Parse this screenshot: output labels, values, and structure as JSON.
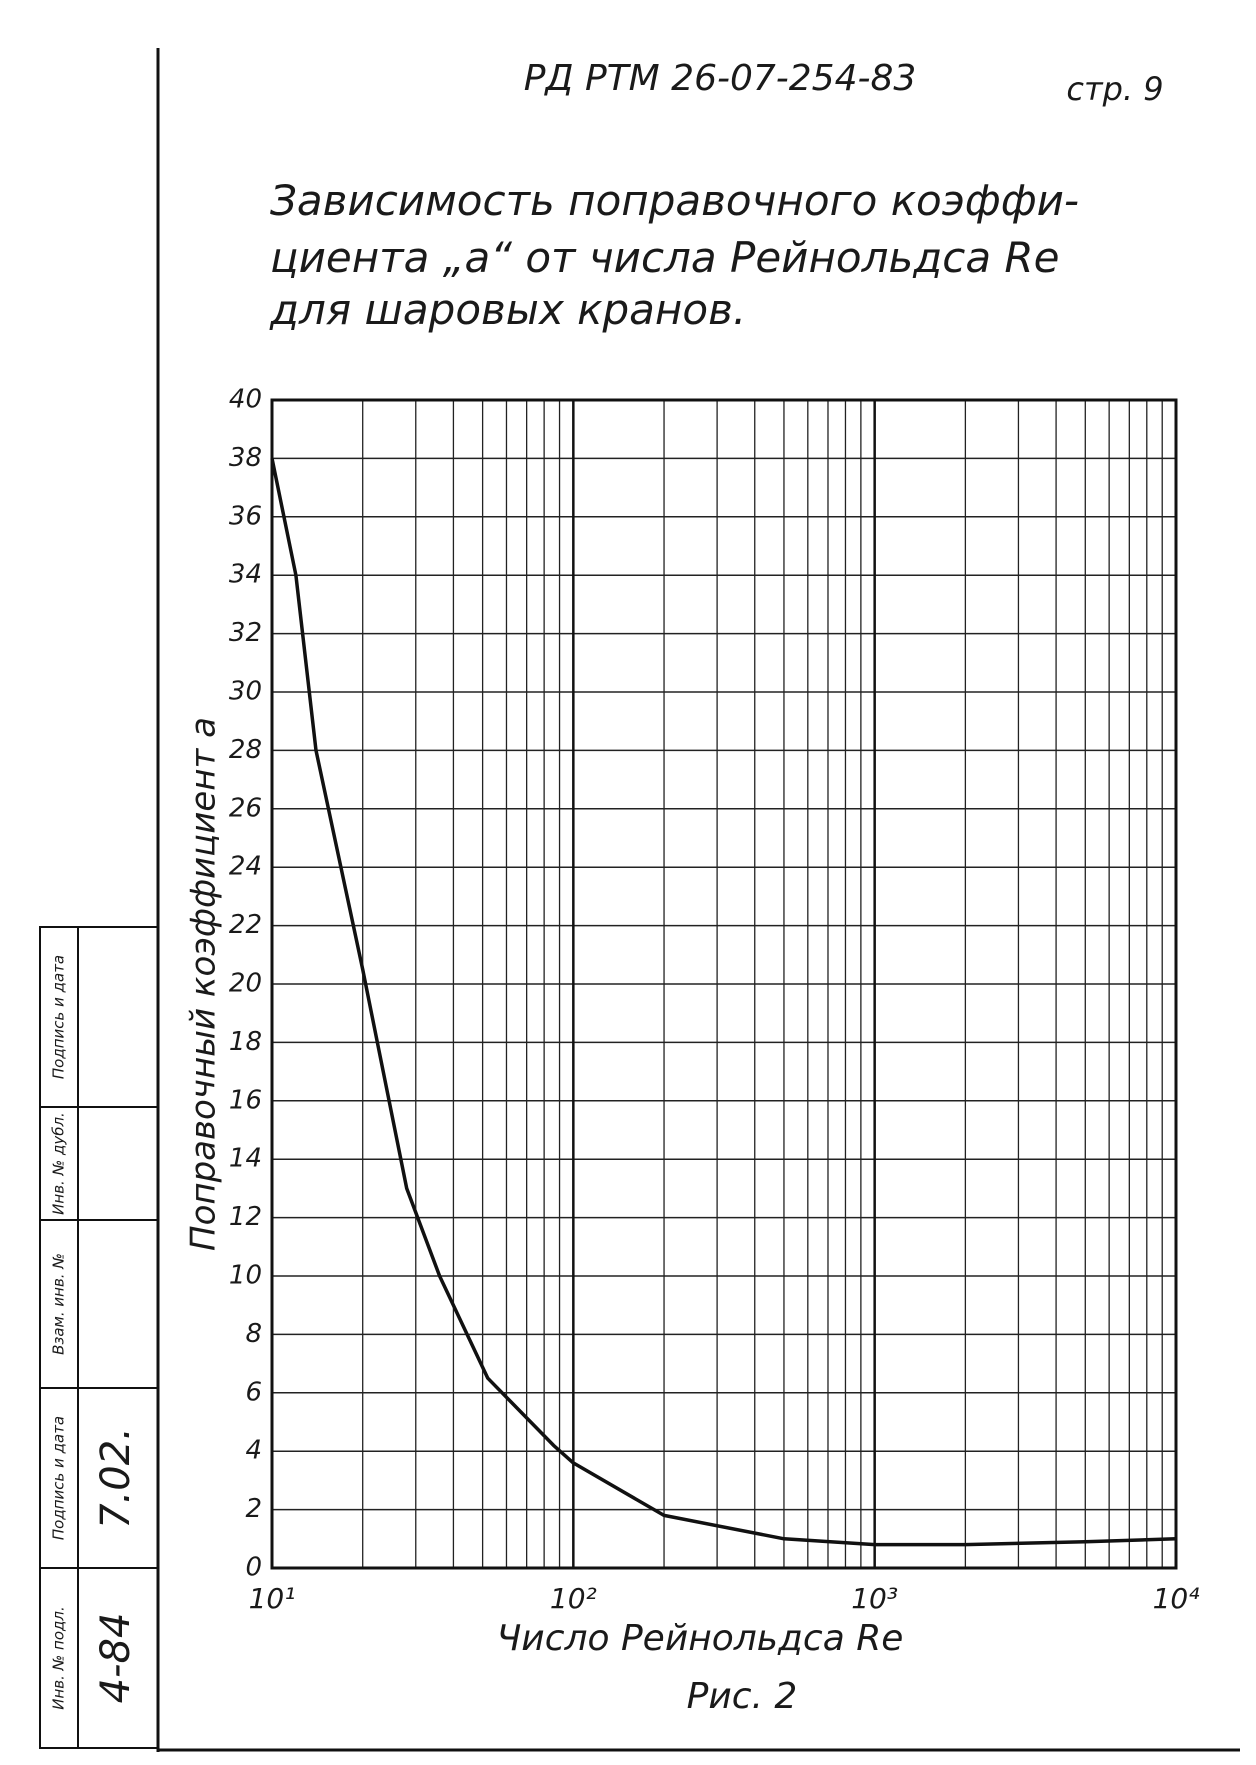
{
  "header": {
    "code": "РД РТМ 26-07-254-83",
    "page": "стр. 9"
  },
  "title": [
    "Зависимость поправочного коэффи-",
    "циента „а“ от числа Рейнольдса Re",
    "для шаровых кранов."
  ],
  "chart_data": {
    "type": "line",
    "xlabel": "Число Рейнольдса Re",
    "ylabel": "Поправочный коэффициент a",
    "caption": "Рис. 2",
    "x": [
      10,
      12,
      14,
      20,
      28,
      36,
      52,
      86,
      100,
      200,
      500,
      1000,
      2000,
      5000,
      10000
    ],
    "series": [
      {
        "color": "#111111",
        "values": [
          38,
          34,
          28,
          20.5,
          13,
          10,
          6.5,
          4.2,
          3.6,
          1.8,
          1.0,
          0.8,
          0.8,
          0.9,
          1.0
        ]
      }
    ],
    "xscale": "log",
    "xlim": [
      10,
      10000
    ],
    "xticks": [
      {
        "value": 10,
        "label": "10¹"
      },
      {
        "value": 100,
        "label": "10²"
      },
      {
        "value": 1000,
        "label": "10³"
      },
      {
        "value": 10000,
        "label": "10⁴"
      }
    ],
    "ylim": [
      0,
      40
    ],
    "yticks": [
      0,
      2,
      4,
      6,
      8,
      10,
      12,
      14,
      16,
      18,
      20,
      22,
      24,
      26,
      28,
      30,
      32,
      34,
      36,
      38,
      40
    ],
    "grid": true
  },
  "stamp": [
    {
      "label": "Подпись и дата"
    },
    {
      "label": "Инв. № дубл."
    },
    {
      "label": "Взам. инв. №"
    },
    {
      "label": "Подпись и дата",
      "value": "7.02."
    },
    {
      "label": "Инв. № подл.",
      "value": "4-84"
    }
  ]
}
